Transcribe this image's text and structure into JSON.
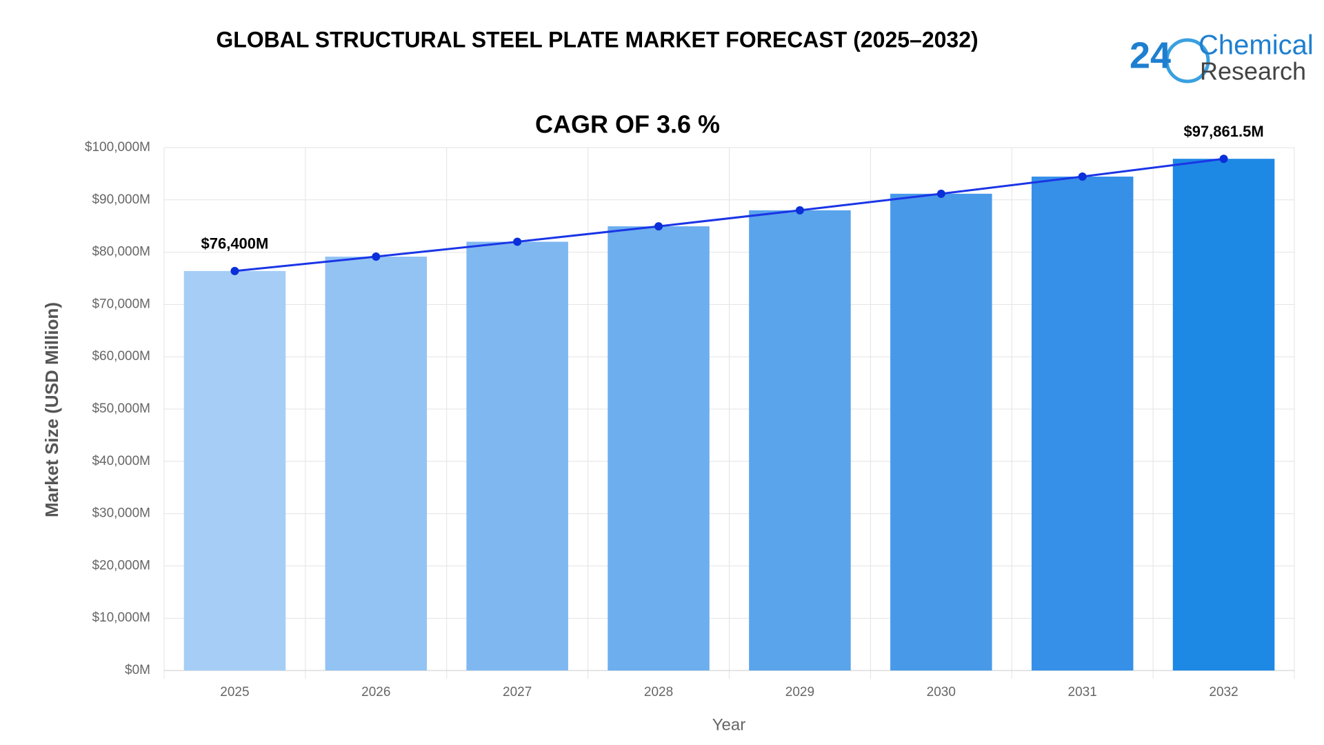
{
  "chart_data": {
    "type": "bar",
    "title": "GLOBAL STRUCTURAL STEEL PLATE MARKET FORECAST (2025–2032)",
    "subtitle": "CAGR OF 3.6  %",
    "x_label": "Year",
    "y_label": "Market Size (USD Million)",
    "categories": [
      "2025",
      "2026",
      "2027",
      "2028",
      "2029",
      "2030",
      "2031",
      "2032"
    ],
    "values": [
      76400,
      79150,
      82000,
      84950,
      88010,
      91180,
      94460,
      97861.5
    ],
    "value_labels": [
      "$76,400M",
      null,
      null,
      null,
      null,
      null,
      null,
      "$97,861.5M"
    ],
    "colors": [
      "#a6cdf5",
      "#92c3f3",
      "#7fb8f0",
      "#6caeee",
      "#5aa4eb",
      "#489ae9",
      "#3690e7",
      "#1e88e5"
    ],
    "line_color": "#1a35e6",
    "ylim": [
      0,
      100000
    ],
    "yticks": [
      {
        "value": 0,
        "label": "$0M"
      },
      {
        "value": 10000,
        "label": "$10,000M"
      },
      {
        "value": 20000,
        "label": "$20,000M"
      },
      {
        "value": 30000,
        "label": "$30,000M"
      },
      {
        "value": 40000,
        "label": "$40,000M"
      },
      {
        "value": 50000,
        "label": "$50,000M"
      },
      {
        "value": 60000,
        "label": "$60,000M"
      },
      {
        "value": 70000,
        "label": "$70,000M"
      },
      {
        "value": 80000,
        "label": "$80,000M"
      },
      {
        "value": 90000,
        "label": "$90,000M"
      },
      {
        "value": 100000,
        "label": "$100,000M"
      }
    ],
    "grid": true
  },
  "logo": {
    "number": "24",
    "line1": "Chemical",
    "line2": "Research"
  }
}
